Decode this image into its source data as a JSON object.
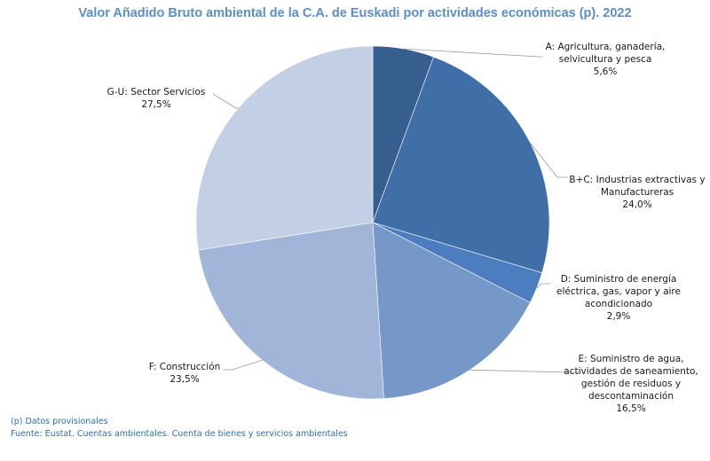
{
  "chart_data": {
    "type": "pie",
    "title": "Valor Añadido Bruto ambiental de la C.A. de Euskadi por actividades económicas (p). 2022",
    "slices": [
      {
        "label_lines": [
          "A: Agricultura, ganadería,",
          "selvicultura y pesca"
        ],
        "value": 5.6,
        "value_label": "5,6%",
        "color": "#365e8e"
      },
      {
        "label_lines": [
          "B+C: Industrias extractivas y",
          "Manufactureras"
        ],
        "value": 24.0,
        "value_label": "24,0%",
        "color": "#406ea6"
      },
      {
        "label_lines": [
          "D: Suministro de energía",
          "eléctrica, gas, vapor y aire",
          "acondicionado"
        ],
        "value": 2.9,
        "value_label": "2,9%",
        "color": "#4b7dbf"
      },
      {
        "label_lines": [
          "E: Suministro de agua,",
          "actividades de saneamiento,",
          "gestión de residuos y",
          "descontaminación"
        ],
        "value": 16.5,
        "value_label": "16,5%",
        "color": "#7698c8"
      },
      {
        "label_lines": [
          "F: Construcción"
        ],
        "value": 23.5,
        "value_label": "23,5%",
        "color": "#a1b5d8"
      },
      {
        "label_lines": [
          "G-U: Sector Servicios"
        ],
        "value": 27.5,
        "value_label": "27,5%",
        "color": "#c2cfe5"
      }
    ],
    "legend": "none"
  },
  "notes": {
    "provisional": "(p) Datos provisionales",
    "source": "Fuente: Eustat. Cuentas ambientales. Cuenta de bienes y servicios ambientales"
  }
}
